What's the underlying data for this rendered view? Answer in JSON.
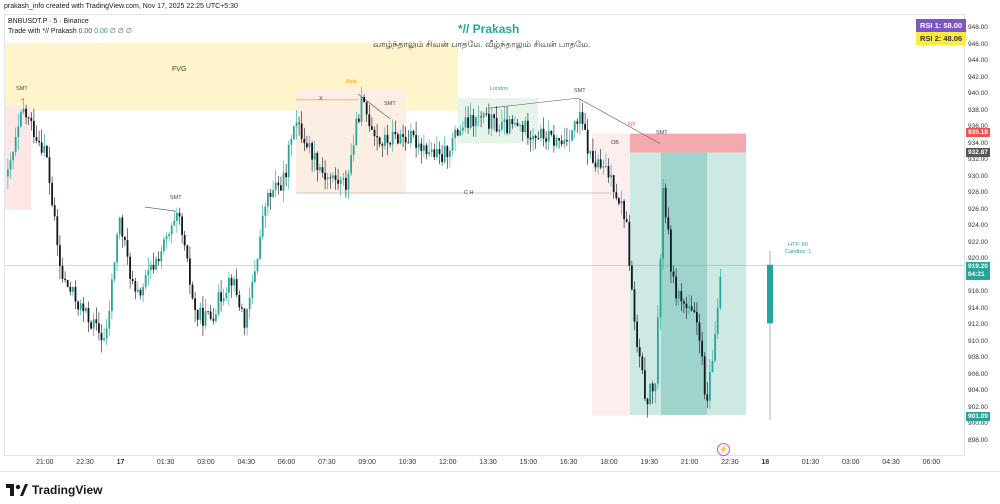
{
  "header": {
    "credit": "prakash_info created with TradingView.com, Nov 17, 2025 22:25 UTC+5:30",
    "symbol_line": "BNBUSDT.P · 5 · Binance",
    "indicator_name": "Trade with *// Prakash",
    "indicator_values": [
      "0.00",
      "0.00",
      "∅",
      "∅",
      "∅"
    ]
  },
  "watermark": {
    "title": "*// Prakash",
    "subtitle": "வாழ்ந்தாலும் சிவன் பாதமே. வீழ்ந்தாலும் சிவன் பாதமே."
  },
  "rsi": {
    "rsi1": "RSI 1: 58.00",
    "rsi2": "RSI 2: 48.06"
  },
  "price_axis": {
    "ticks": [
      "948.00",
      "946.00",
      "944.00",
      "942.00",
      "940.00",
      "938.00",
      "936.00",
      "934.00",
      "932.00",
      "930.00",
      "928.00",
      "926.00",
      "924.00",
      "922.00",
      "920.00",
      "918.00",
      "916.00",
      "914.00",
      "912.00",
      "910.00",
      "908.00",
      "906.00",
      "904.00",
      "902.00",
      "900.00",
      "898.00"
    ],
    "tags": {
      "red": "935.18",
      "dark": "932.87",
      "green_price": "919.20",
      "green_time": "04:21",
      "green_low": "901.09"
    }
  },
  "time_axis": [
    "21:00",
    "22:30",
    "17",
    "01:30",
    "03:00",
    "04:30",
    "06:00",
    "07:30",
    "09:00",
    "10:30",
    "12:00",
    "13:30",
    "15:00",
    "16:30",
    "18:00",
    "19:30",
    "21:00",
    "22:30",
    "18",
    "01:30",
    "03:00",
    "04:30",
    "06:00"
  ],
  "annotations": {
    "fvg": "FVG",
    "smt": "SMT",
    "asia": "Asia",
    "x": "X",
    "london": "London",
    "ob": "OB",
    "ny": "NY",
    "ch": "C H",
    "htf": "HTF: 60",
    "candles": "Candles: 1"
  },
  "colors": {
    "up": "#26a69a",
    "down": "#131722",
    "fvg": "#fff3c4",
    "red_zone": "#f7c6c9",
    "teal_zone": "#b2dfdb",
    "rsi1_bg": "#7e57c2",
    "rsi2_bg": "#ffeb3b"
  },
  "brand": "TradingView"
}
